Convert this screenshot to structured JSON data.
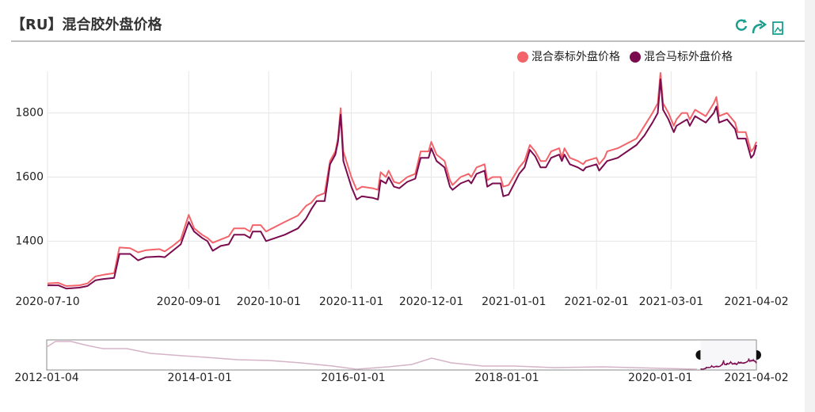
{
  "header": {
    "title": "【RU】混合胶外盘价格"
  },
  "chart_data": {
    "type": "line",
    "x": [
      "2020-07-10",
      "2020-07-14",
      "2020-07-17",
      "2020-07-22",
      "2020-07-25",
      "2020-07-28",
      "2020-07-31",
      "2020-08-04",
      "2020-08-06",
      "2020-08-10",
      "2020-08-13",
      "2020-08-16",
      "2020-08-21",
      "2020-08-23",
      "2020-08-26",
      "2020-08-29",
      "2020-09-01",
      "2020-09-03",
      "2020-09-06",
      "2020-09-08",
      "2020-09-10",
      "2020-09-13",
      "2020-09-16",
      "2020-09-18",
      "2020-09-22",
      "2020-09-24",
      "2020-09-25",
      "2020-09-28",
      "2020-09-30",
      "2020-10-07",
      "2020-10-12",
      "2020-10-15",
      "2020-10-17",
      "2020-10-19",
      "2020-10-22",
      "2020-10-23",
      "2020-10-24",
      "2020-10-26",
      "2020-10-27",
      "2020-10-28",
      "2020-10-29",
      "2020-11-01",
      "2020-11-03",
      "2020-11-05",
      "2020-11-09",
      "2020-11-11",
      "2020-11-12",
      "2020-11-14",
      "2020-11-15",
      "2020-11-17",
      "2020-11-19",
      "2020-11-22",
      "2020-11-25",
      "2020-11-27",
      "2020-11-30",
      "2020-12-01",
      "2020-12-03",
      "2020-12-06",
      "2020-12-08",
      "2020-12-09",
      "2020-12-12",
      "2020-12-15",
      "2020-12-16",
      "2020-12-18",
      "2020-12-21",
      "2020-12-22",
      "2020-12-24",
      "2020-12-27",
      "2020-12-28",
      "2020-12-30",
      "2021-01-03",
      "2021-01-05",
      "2021-01-07",
      "2021-01-09",
      "2021-01-11",
      "2021-01-13",
      "2021-01-15",
      "2021-01-18",
      "2021-01-19",
      "2021-01-20",
      "2021-01-22",
      "2021-01-25",
      "2021-01-27",
      "2021-01-28",
      "2021-02-01",
      "2021-02-02",
      "2021-02-04",
      "2021-02-05",
      "2021-02-09",
      "2021-02-16",
      "2021-02-19",
      "2021-02-22",
      "2021-02-24",
      "2021-02-25",
      "2021-02-26",
      "2021-02-28",
      "2021-03-02",
      "2021-03-03",
      "2021-03-05",
      "2021-03-07",
      "2021-03-08",
      "2021-03-10",
      "2021-03-12",
      "2021-03-14",
      "2021-03-17",
      "2021-03-18",
      "2021-03-19",
      "2021-03-22",
      "2021-03-25",
      "2021-03-26",
      "2021-03-29",
      "2021-03-31",
      "2021-04-01",
      "2021-04-02"
    ],
    "series": [
      {
        "name": "混合泰标外盘价格",
        "color": "#f2646a",
        "values": [
          1268,
          1270,
          1260,
          1262,
          1268,
          1290,
          1295,
          1300,
          1380,
          1378,
          1365,
          1372,
          1375,
          1368,
          1385,
          1405,
          1482,
          1440,
          1420,
          1410,
          1395,
          1405,
          1415,
          1440,
          1440,
          1430,
          1450,
          1450,
          1430,
          1460,
          1480,
          1510,
          1520,
          1540,
          1550,
          1600,
          1650,
          1680,
          1720,
          1815,
          1680,
          1600,
          1560,
          1570,
          1565,
          1560,
          1615,
          1600,
          1620,
          1585,
          1580,
          1600,
          1610,
          1680,
          1680,
          1710,
          1670,
          1650,
          1590,
          1575,
          1600,
          1610,
          1600,
          1630,
          1640,
          1590,
          1600,
          1600,
          1570,
          1575,
          1630,
          1650,
          1700,
          1680,
          1650,
          1650,
          1680,
          1690,
          1660,
          1690,
          1660,
          1650,
          1640,
          1650,
          1660,
          1640,
          1660,
          1680,
          1690,
          1720,
          1760,
          1800,
          1830,
          1925,
          1830,
          1800,
          1760,
          1780,
          1800,
          1800,
          1780,
          1810,
          1800,
          1790,
          1830,
          1850,
          1790,
          1800,
          1770,
          1740,
          1740,
          1680,
          1690,
          1710
        ]
      },
      {
        "name": "混合马标外盘价格",
        "color": "#7a0b4f",
        "values": [
          1262,
          1262,
          1252,
          1255,
          1260,
          1278,
          1282,
          1285,
          1360,
          1360,
          1340,
          1350,
          1352,
          1350,
          1370,
          1390,
          1460,
          1430,
          1410,
          1400,
          1370,
          1385,
          1390,
          1420,
          1420,
          1410,
          1430,
          1430,
          1400,
          1420,
          1440,
          1470,
          1500,
          1525,
          1525,
          1580,
          1640,
          1670,
          1710,
          1795,
          1650,
          1570,
          1530,
          1540,
          1535,
          1530,
          1590,
          1580,
          1600,
          1570,
          1565,
          1585,
          1595,
          1660,
          1660,
          1690,
          1650,
          1630,
          1570,
          1560,
          1580,
          1590,
          1580,
          1610,
          1620,
          1570,
          1580,
          1580,
          1540,
          1545,
          1610,
          1630,
          1685,
          1665,
          1630,
          1630,
          1660,
          1670,
          1650,
          1670,
          1640,
          1630,
          1620,
          1630,
          1640,
          1620,
          1640,
          1650,
          1660,
          1700,
          1730,
          1770,
          1800,
          1905,
          1810,
          1780,
          1740,
          1760,
          1770,
          1780,
          1760,
          1790,
          1780,
          1770,
          1800,
          1820,
          1770,
          1780,
          1750,
          1720,
          1720,
          1660,
          1670,
          1700
        ]
      }
    ],
    "xlim": [
      "2020-07-10",
      "2021-04-02"
    ],
    "xticks": [
      "2020-07-10",
      "2020-09-01",
      "2020-10-01",
      "2020-11-01",
      "2020-12-01",
      "2021-01-01",
      "2021-02-01",
      "2021-03-01",
      "2021-04-02"
    ],
    "ylim": [
      1250,
      1930
    ],
    "yticks": [
      1400,
      1600,
      1800
    ],
    "grid": true,
    "legend": "top-right"
  },
  "zoom": {
    "range": [
      "2012-01-04",
      "2021-04-02"
    ],
    "ticks": [
      "2012-01-04",
      "2014-01-01",
      "2016-01-01",
      "2018-01-01",
      "2020-01-01",
      "2021-04-02"
    ]
  }
}
